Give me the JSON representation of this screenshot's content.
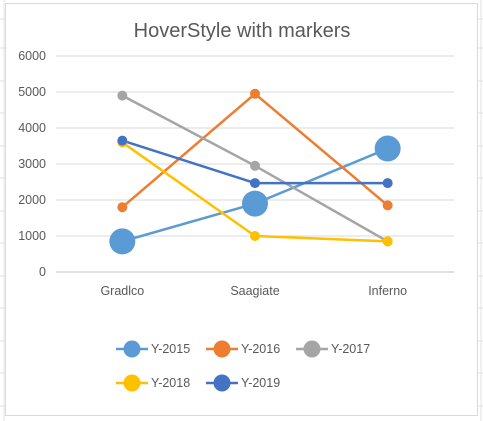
{
  "chart_data": {
    "type": "line",
    "title": "HoverStyle with markers",
    "categories": [
      "Gradlco",
      "Saagiate",
      "Inferno"
    ],
    "ylim": [
      0,
      6000
    ],
    "yticks": [
      0,
      1000,
      2000,
      3000,
      4000,
      5000,
      6000
    ],
    "grid": true,
    "legend_position": "bottom",
    "series": [
      {
        "name": "Y-2015",
        "color": "#5b9bd5",
        "values": [
          850,
          1900,
          3430
        ],
        "marker": "large"
      },
      {
        "name": "Y-2016",
        "color": "#ed7d31",
        "values": [
          1800,
          4950,
          1850
        ],
        "marker": "small"
      },
      {
        "name": "Y-2017",
        "color": "#a5a5a5",
        "values": [
          4900,
          2950,
          850
        ],
        "marker": "small"
      },
      {
        "name": "Y-2018",
        "color": "#ffc000",
        "values": [
          3600,
          1000,
          850
        ],
        "marker": "small"
      },
      {
        "name": "Y-2019",
        "color": "#4472c4",
        "values": [
          3650,
          2470,
          2470
        ],
        "marker": "small"
      }
    ]
  }
}
